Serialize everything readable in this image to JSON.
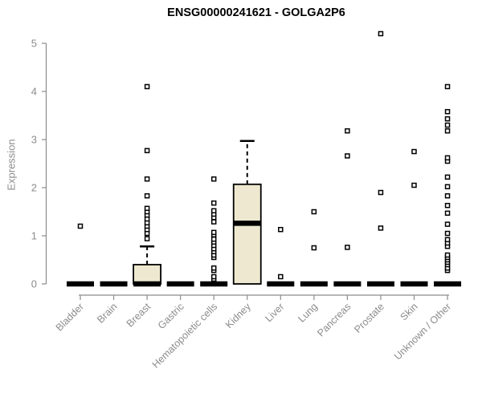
{
  "chart_data": {
    "type": "boxplot",
    "title": "ENSG00000241621 - GOLGA2P6",
    "ylabel": "Expression",
    "xlabel": "",
    "ylim": [
      0,
      5
    ],
    "yticks": [
      0,
      1,
      2,
      3,
      4,
      5
    ],
    "grid": false,
    "legend": "none",
    "axis_color": "#8c8c8c",
    "box_fill": "#ede8cf",
    "box_stroke": "#000000",
    "outlier_marker": "open-square",
    "categories": [
      "Bladder",
      "Brain",
      "Breast",
      "Gastric",
      "Hematopoietic cells",
      "Kidney",
      "Liver",
      "Lung",
      "Pancreas",
      "Prostate",
      "Skin",
      "Unknown / Other"
    ],
    "series": [
      {
        "category": "Bladder",
        "q1": 0,
        "median": 0,
        "q3": 0,
        "whisker_low": 0,
        "whisker_high": 0,
        "outliers": [
          1.2
        ]
      },
      {
        "category": "Brain",
        "q1": 0,
        "median": 0,
        "q3": 0,
        "whisker_low": 0,
        "whisker_high": 0,
        "outliers": []
      },
      {
        "category": "Breast",
        "q1": 0,
        "median": 0,
        "q3": 0.4,
        "whisker_low": 0,
        "whisker_high": 0.78,
        "outliers": [
          0.94,
          1.05,
          1.13,
          1.2,
          1.27,
          1.35,
          1.43,
          1.5,
          1.57,
          1.83,
          2.18,
          2.77,
          4.1
        ]
      },
      {
        "category": "Gastric",
        "q1": 0,
        "median": 0,
        "q3": 0,
        "whisker_low": 0,
        "whisker_high": 0,
        "outliers": []
      },
      {
        "category": "Hematopoietic cells",
        "q1": 0,
        "median": 0,
        "q3": 0,
        "whisker_low": 0,
        "whisker_high": 0,
        "outliers": [
          0.1,
          0.15,
          0.28,
          0.33,
          0.55,
          0.6,
          0.67,
          0.73,
          0.8,
          0.87,
          0.93,
          1.02,
          1.07,
          1.29,
          1.38,
          1.45,
          1.52,
          1.68,
          2.18
        ]
      },
      {
        "category": "Kidney",
        "q1": 0,
        "median": 1.26,
        "q3": 2.07,
        "whisker_low": 0,
        "whisker_high": 2.97,
        "outliers": []
      },
      {
        "category": "Liver",
        "q1": 0,
        "median": 0,
        "q3": 0,
        "whisker_low": 0,
        "whisker_high": 0,
        "outliers": [
          0.15,
          1.13
        ]
      },
      {
        "category": "Lung",
        "q1": 0,
        "median": 0,
        "q3": 0,
        "whisker_low": 0,
        "whisker_high": 0,
        "outliers": [
          0.75,
          1.5
        ]
      },
      {
        "category": "Pancreas",
        "q1": 0,
        "median": 0,
        "q3": 0,
        "whisker_low": 0,
        "whisker_high": 0,
        "outliers": [
          0.76,
          2.66,
          3.18
        ]
      },
      {
        "category": "Prostate",
        "q1": 0,
        "median": 0,
        "q3": 0,
        "whisker_low": 0,
        "whisker_high": 0,
        "outliers": [
          1.16,
          1.9,
          5.2
        ]
      },
      {
        "category": "Skin",
        "q1": 0,
        "median": 0,
        "q3": 0,
        "whisker_low": 0,
        "whisker_high": 0,
        "outliers": [
          2.05,
          2.75
        ]
      },
      {
        "category": "Unknown / Other",
        "q1": 0,
        "median": 0,
        "q3": 0,
        "whisker_low": 0,
        "whisker_high": 0,
        "outliers": [
          0.28,
          0.33,
          0.4,
          0.45,
          0.5,
          0.55,
          0.6,
          0.78,
          0.85,
          0.92,
          1.05,
          1.24,
          1.47,
          1.63,
          1.83,
          2.02,
          2.22,
          2.55,
          2.62,
          3.18,
          3.3,
          3.43,
          3.58,
          4.1
        ]
      }
    ]
  }
}
